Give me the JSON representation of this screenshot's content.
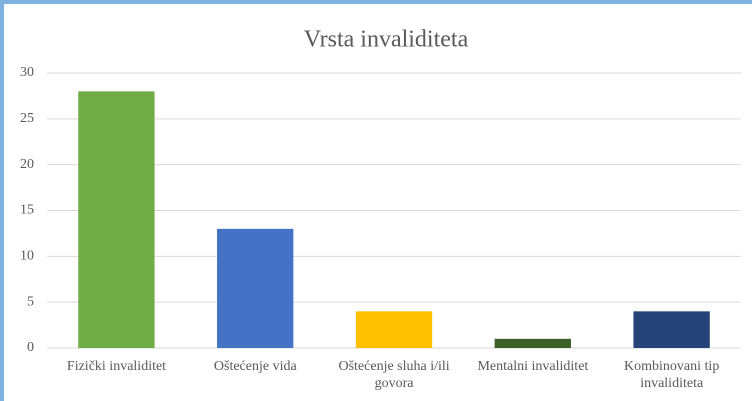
{
  "chart_data": {
    "type": "bar",
    "title": "Vrsta invaliditeta",
    "categories": [
      "Fizički invaliditet",
      "Oštećenje vida",
      "Oštećenje sluha i/ili govora",
      "Mentalni invaliditet",
      "Kombinovani tip invaliditeta"
    ],
    "values": [
      28,
      13,
      4,
      1,
      4
    ],
    "colors": [
      "#70ad47",
      "#4472c4",
      "#ffc000",
      "#3b6128",
      "#264478"
    ],
    "ylim": [
      0,
      30
    ],
    "yticks": [
      0,
      5,
      10,
      15,
      20,
      25,
      30
    ],
    "grid": true
  }
}
